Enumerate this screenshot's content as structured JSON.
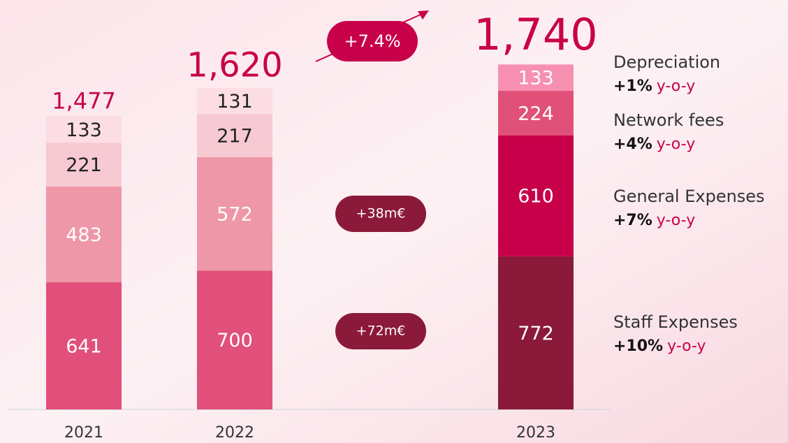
{
  "chart_data": {
    "type": "stacked_bar",
    "categories": [
      "2021",
      "2022",
      "2023"
    ],
    "series": [
      {
        "name": "Staff Expenses",
        "change": "+10%",
        "colors": [
          "#e0507a",
          "#e0507a",
          "#8b1a3a"
        ],
        "values": [
          641,
          700,
          772
        ]
      },
      {
        "name": "General Expenses",
        "change": "+7%",
        "colors": [
          "#ee97a8",
          "#ee97a8",
          "#c8004a"
        ],
        "values": [
          483,
          572,
          610
        ]
      },
      {
        "name": "Network fees",
        "change": "+4%",
        "colors": [
          "#f6c9d3",
          "#f6c9d3",
          "#e05078"
        ],
        "values": [
          221,
          217,
          224
        ]
      },
      {
        "name": "Depreciation",
        "change": "+1%",
        "colors": [
          "#fbdde3",
          "#fbdde3",
          "#f78fb0"
        ],
        "values": [
          133,
          131,
          133
        ]
      }
    ],
    "totals": [
      1477,
      1620,
      1740
    ],
    "total_labels": [
      "1,477",
      "1,620",
      "1,740"
    ],
    "change_suffix": "y-o-y",
    "annotations": [
      "+7.4%",
      "+38m€",
      "+72m€"
    ]
  }
}
